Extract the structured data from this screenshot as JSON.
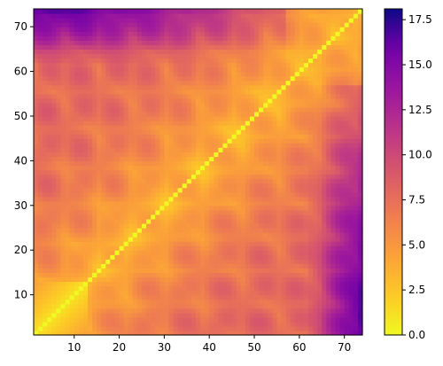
{
  "chart_data": {
    "type": "heatmap",
    "n": 73,
    "x_range": [
      1,
      74
    ],
    "y_range": [
      1,
      74
    ],
    "x_ticks": [
      10,
      20,
      30,
      40,
      50,
      60,
      70
    ],
    "y_ticks": [
      10,
      20,
      30,
      40,
      50,
      60,
      70
    ],
    "colorbar": {
      "colormap": "plasma (reversed)",
      "min": 0,
      "max": 18.1,
      "ticks": [
        "0.0",
        "2.5",
        "5.0",
        "7.5",
        "10.0",
        "12.5",
        "15.0",
        "17.5"
      ]
    },
    "diagonal_value": 0,
    "description_values": {
      "bulk_range": [
        2,
        9
      ],
      "end_block_rows": [
        62,
        73
      ],
      "end_block_cols": [
        1,
        56
      ],
      "end_block_max": 18.1
    }
  }
}
